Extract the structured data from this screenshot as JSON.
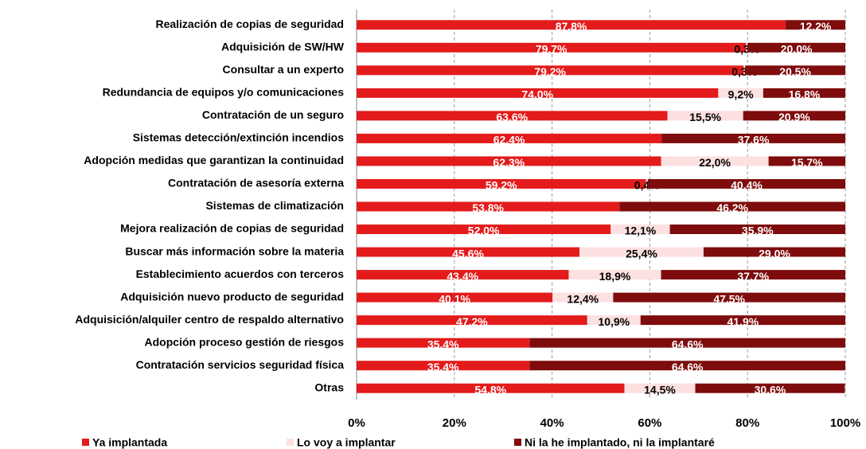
{
  "chart_data": {
    "type": "stacked_bar_horizontal",
    "categories": [
      "Realización de copias de seguridad",
      "Adquisición de SW/HW",
      "Consultar a un experto",
      "Redundancia de equipos y/o comunicaciones",
      "Contratación de un seguro",
      "Sistemas detección/extinción incendios",
      "Adopción medidas que garantizan la continuidad",
      "Contratación de asesoría externa",
      "Sistemas de climatización",
      "Mejora realización de copias de seguridad",
      "Buscar más información sobre la materia",
      "Establecimiento acuerdos con terceros",
      "Adquisición nuevo producto de seguridad",
      "Adquisición/alquiler centro de respaldo alternativo",
      "Adopción proceso gestión de riesgos",
      "Contratación servicios seguridad física",
      "Otras"
    ],
    "series": [
      {
        "name": "Ya implantada",
        "color": "#e31b1b",
        "values": [
          87.8,
          79.7,
          79.2,
          74.0,
          63.6,
          62.4,
          62.3,
          59.2,
          53.8,
          52.0,
          45.6,
          43.4,
          40.1,
          47.2,
          35.4,
          35.4,
          54.8
        ],
        "value_labels": [
          "87,8%",
          "79,7%",
          "79,2%",
          "74,0%",
          "63,6%",
          "62,4%",
          "62,3%",
          "59,2%",
          "53,8%",
          "52,0%",
          "45,6%",
          "43,4%",
          "40,1%",
          "47,2%",
          "35,4%",
          "35,4%",
          "54,8%"
        ]
      },
      {
        "name": "Lo voy a implantar",
        "color": "#fde0e0",
        "values": [
          null,
          0.3,
          0.3,
          9.2,
          15.5,
          null,
          22.0,
          0.4,
          null,
          12.1,
          25.4,
          18.9,
          12.4,
          10.9,
          null,
          null,
          14.5
        ],
        "value_labels": [
          null,
          "0,3%",
          "0,3%",
          "9,2%",
          "15,5%",
          null,
          "22,0%",
          "0,4%",
          null,
          "12,1%",
          "25,4%",
          "18,9%",
          "12,4%",
          "10,9%",
          null,
          null,
          "14,5%"
        ]
      },
      {
        "name": "Ni la he implantado, ni la implantaré",
        "color": "#7f0c0c",
        "values": [
          12.2,
          20.0,
          20.5,
          16.8,
          20.9,
          37.6,
          15.7,
          40.4,
          46.2,
          35.9,
          29.0,
          37.7,
          47.5,
          41.9,
          64.6,
          64.6,
          30.6
        ],
        "value_labels": [
          "12,2%",
          "20,0%",
          "20,5%",
          "16,8%",
          "20,9%",
          "37,6%",
          "15,7%",
          "40,4%",
          "46,2%",
          "35,9%",
          "29,0%",
          "37,7%",
          "47,5%",
          "41,9%",
          "64,6%",
          "64,6%",
          "30,6%"
        ]
      }
    ],
    "xlim": [
      0,
      100
    ],
    "xticks": [
      {
        "value": 0,
        "label": "0%"
      },
      {
        "value": 20,
        "label": "20%"
      },
      {
        "value": 40,
        "label": "40%"
      },
      {
        "value": 60,
        "label": "60%"
      },
      {
        "value": 80,
        "label": "80%"
      },
      {
        "value": 100,
        "label": "100%"
      }
    ],
    "grid": true,
    "legend": "bottom"
  }
}
